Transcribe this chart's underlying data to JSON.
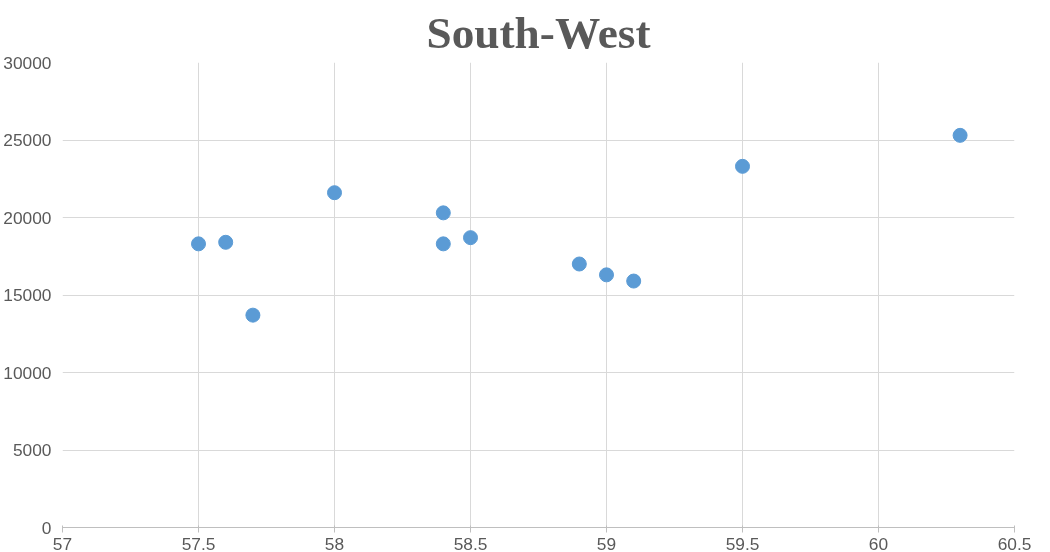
{
  "chart_data": {
    "type": "scatter",
    "title": "South-West",
    "x": [
      57.5,
      57.6,
      57.7,
      58.0,
      58.4,
      58.4,
      58.5,
      58.9,
      59.0,
      59.1,
      59.5,
      60.3
    ],
    "values": [
      18300,
      18400,
      13700,
      21600,
      20300,
      18300,
      18700,
      17000,
      16300,
      15900,
      23300,
      25300
    ],
    "color": "#5b9bd5",
    "marker": "circle",
    "xlim": [
      57,
      60.5
    ],
    "xticks": [
      57,
      57.5,
      58,
      58.5,
      59,
      59.5,
      60,
      60.5
    ],
    "ylim": [
      0,
      30000
    ],
    "yticks": [
      0,
      5000,
      10000,
      15000,
      20000,
      25000,
      30000
    ],
    "grid": true
  }
}
